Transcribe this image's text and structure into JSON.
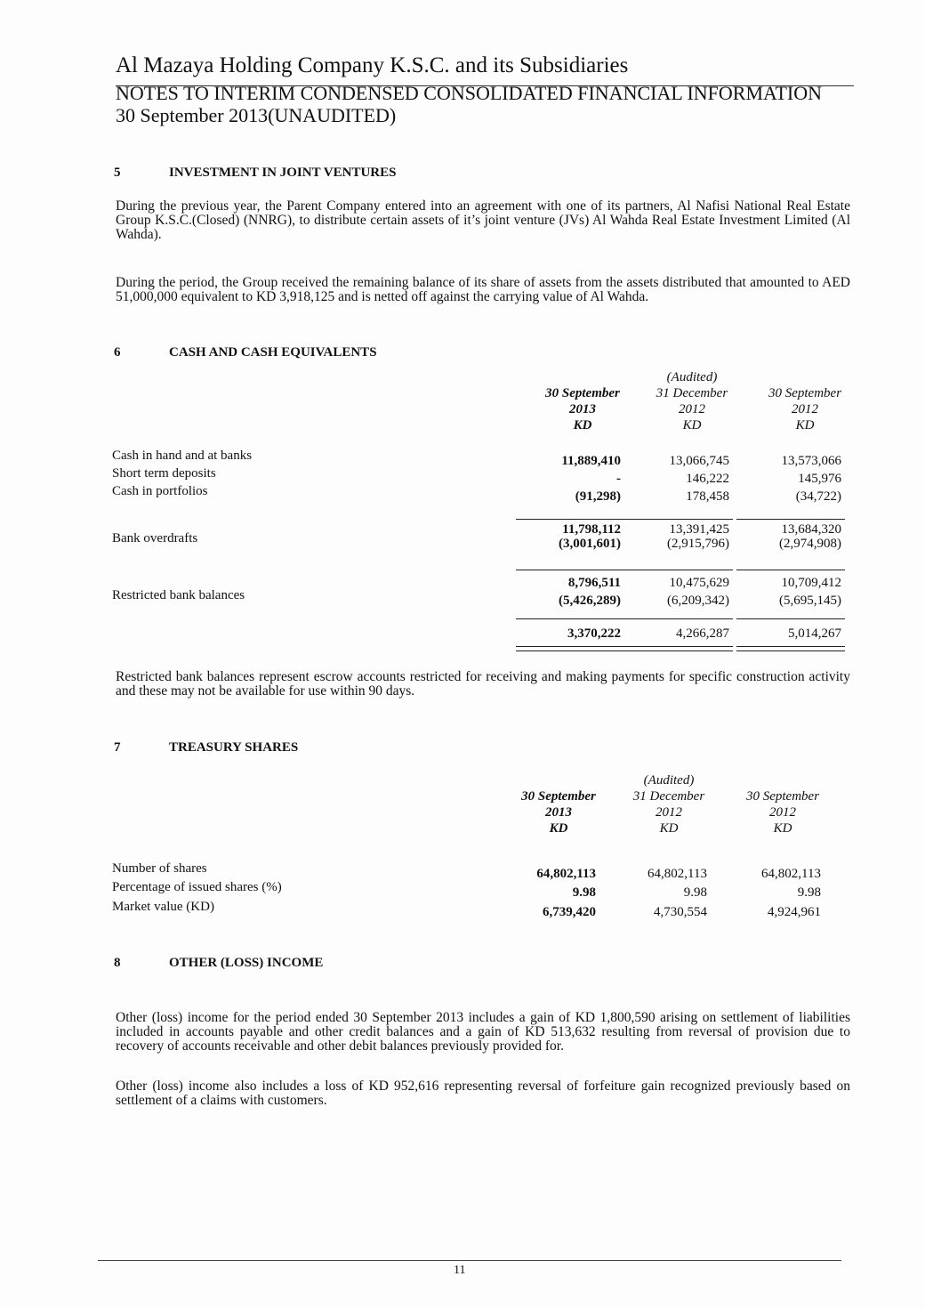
{
  "header": {
    "company": "Al Mazaya Holding Company K.S.C. and its Subsidiaries",
    "subtitle": "NOTES TO INTERIM CONDENSED CONSOLIDATED FINANCIAL INFORMATION",
    "date": "30 September 2013(UNAUDITED)"
  },
  "s5": {
    "num": "5",
    "title": "INVESTMENT IN JOINT VENTURES",
    "p1": "During the previous year, the Parent Company entered into an agreement with one of its partners, Al Nafisi National Real Estate Group K.S.C.(Closed) (NNRG), to distribute certain assets of it’s joint venture (JVs) Al Wahda Real Estate Investment Limited (Al Wahda).",
    "p2": "During the period, the Group received the remaining balance of its share of assets from the assets distributed that amounted to AED 51,000,000 equivalent to KD 3,918,125 and is netted off against the carrying value of Al Wahda."
  },
  "s6": {
    "num": "6",
    "title": "CASH AND CASH EQUIVALENTS",
    "columns": [
      {
        "audited": "",
        "l1": "30 September",
        "l2": "2013",
        "l3": "KD"
      },
      {
        "audited": "(Audited)",
        "l1": "31 December",
        "l2": "2012",
        "l3": "KD"
      },
      {
        "audited": "",
        "l1": "30 September",
        "l2": "2012",
        "l3": "KD"
      }
    ],
    "rows": [
      {
        "label": "Cash in hand and at banks",
        "values": [
          "11,889,410",
          "13,066,745",
          "13,573,066"
        ]
      },
      {
        "label": "Short term deposits",
        "values": [
          "-",
          "146,222",
          "145,976"
        ]
      },
      {
        "label": "Cash in portfolios",
        "values": [
          "(91,298)",
          "178,458",
          "(34,722)"
        ]
      },
      {
        "label": "",
        "values": [
          "11,798,112",
          "13,391,425",
          "13,684,320"
        ]
      },
      {
        "label": "Bank overdrafts",
        "values": [
          "(3,001,601)",
          "(2,915,796)",
          "(2,974,908)"
        ]
      },
      {
        "label": "",
        "values": [
          "8,796,511",
          "10,475,629",
          "10,709,412"
        ]
      },
      {
        "label": "Restricted bank balances",
        "values": [
          "(5,426,289)",
          "(6,209,342)",
          "(5,695,145)"
        ]
      },
      {
        "label": "",
        "values": [
          "3,370,222",
          "4,266,287",
          "5,014,267"
        ]
      }
    ],
    "note": "Restricted bank balances represent escrow accounts restricted for receiving and making payments for specific construction activity and these may not be available for use within 90 days."
  },
  "s7": {
    "num": "7",
    "title": "TREASURY SHARES",
    "columns": [
      {
        "audited": "",
        "l1": "30 September",
        "l2": "2013",
        "l3": "KD"
      },
      {
        "audited": "(Audited)",
        "l1": "31 December",
        "l2": "2012",
        "l3": "KD"
      },
      {
        "audited": "",
        "l1": "30 September",
        "l2": "2012",
        "l3": "KD"
      }
    ],
    "rows": [
      {
        "label": "Number of shares",
        "values": [
          "64,802,113",
          "64,802,113",
          "64,802,113"
        ]
      },
      {
        "label": "Percentage of issued shares (%)",
        "values": [
          "9.98",
          "9.98",
          "9.98"
        ]
      },
      {
        "label": "Market value (KD)",
        "values": [
          "6,739,420",
          "4,730,554",
          "4,924,961"
        ]
      }
    ]
  },
  "s8": {
    "num": "8",
    "title": "OTHER (LOSS) INCOME",
    "p1": "Other (loss) income for the period ended 30 September 2013 includes a gain of KD 1,800,590 arising on settlement of liabilities included in accounts payable and other credit balances and a gain of KD 513,632 resulting from reversal of provision due to recovery of accounts receivable and other debit balances previously provided for.",
    "p2": "Other (loss) income also includes a loss of KD 952,616 representing reversal of forfeiture gain recognized previously based on settlement of a claims with customers."
  },
  "footer": {
    "page": "11"
  }
}
